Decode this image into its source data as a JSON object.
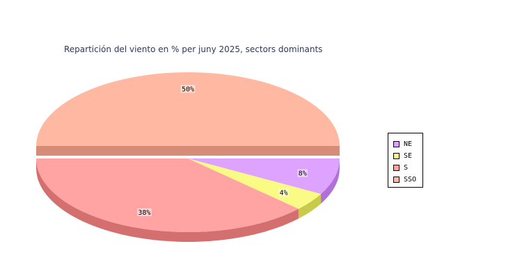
{
  "chart_data": {
    "type": "pie",
    "title": "Repartición del viento en % per juny 2025, sectors dominants",
    "categories": [
      "NE",
      "SE",
      "S",
      "SSO"
    ],
    "values": [
      8,
      4,
      38,
      50
    ],
    "labels": [
      "8%",
      "4%",
      "38%",
      "50%"
    ],
    "colors": [
      "#dda3ff",
      "#fafb84",
      "#ffa3a3",
      "#ffb9a3"
    ],
    "side_colors": [
      "#b070d8",
      "#c8ca4a",
      "#d46f6f",
      "#d68c76"
    ],
    "legend_position": "right",
    "exploded_slice": "SSO"
  }
}
